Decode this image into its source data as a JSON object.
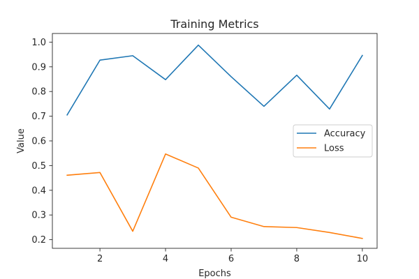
{
  "chart_data": {
    "type": "line",
    "title": "Training Metrics",
    "xlabel": "Epochs",
    "ylabel": "Value",
    "x": [
      1,
      2,
      3,
      4,
      5,
      6,
      7,
      8,
      9,
      10
    ],
    "xticks": [
      2,
      4,
      6,
      8,
      10
    ],
    "yticks": [
      0.2,
      0.3,
      0.4,
      0.5,
      0.6,
      0.7,
      0.8,
      0.9,
      1.0
    ],
    "xlim": [
      0.55,
      10.45
    ],
    "ylim": [
      0.165,
      1.035
    ],
    "grid": false,
    "legend_position": "center-right",
    "series": [
      {
        "name": "Accuracy",
        "color": "#1f77b4",
        "values": [
          0.705,
          0.927,
          0.945,
          0.848,
          0.988,
          0.86,
          0.74,
          0.866,
          0.729,
          0.946
        ]
      },
      {
        "name": "Loss",
        "color": "#ff7f0e",
        "values": [
          0.461,
          0.472,
          0.234,
          0.547,
          0.49,
          0.291,
          0.253,
          0.249,
          0.229,
          0.205
        ]
      }
    ]
  }
}
